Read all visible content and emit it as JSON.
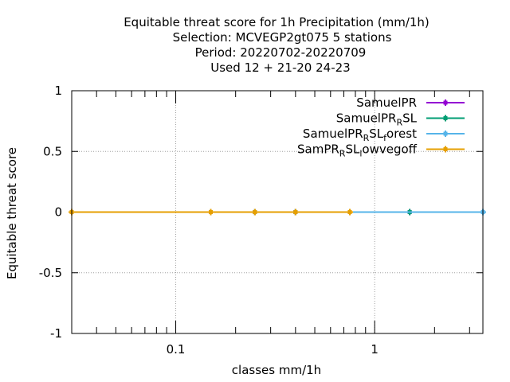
{
  "chart_data": {
    "type": "line",
    "title_lines": [
      "Equitable threat score  for 1h Precipitation (mm/1h)",
      "Selection: MCVEGP2gt075       5 stations",
      "Period: 20220702-20220709",
      "Used  12 + 21-20 24-23"
    ],
    "xlabel": "classes mm/1h",
    "ylabel": "Equitable threat score",
    "x_scale": "log",
    "xlim": [
      0.03,
      3.5
    ],
    "ylim": [
      -1,
      1
    ],
    "x_ticks": [
      0.1,
      1
    ],
    "x_tick_labels": [
      "0.1",
      "1"
    ],
    "y_ticks": [
      -1,
      -0.5,
      0,
      0.5,
      1
    ],
    "y_tick_labels": [
      "-1",
      "-0.5",
      "0",
      "0.5",
      "1"
    ],
    "grid": true,
    "legend_position": "top-right",
    "series": [
      {
        "name_main": "SamuelPR",
        "name_sub": "",
        "name_tail": "",
        "color": "#9400d3",
        "x": [
          0.03,
          0.15,
          0.25,
          0.4,
          0.75,
          1.5,
          3.5
        ],
        "y": [
          0,
          0,
          0,
          0,
          0,
          0,
          0
        ]
      },
      {
        "name_main": "SamuelPR",
        "name_sub": "R",
        "name_tail": "SL",
        "color": "#009e73",
        "x": [
          0.03,
          0.15,
          0.25,
          0.4,
          0.75,
          1.5,
          3.5
        ],
        "y": [
          0,
          0,
          0,
          0,
          0,
          0,
          0
        ]
      },
      {
        "name_main": "SamuelPR",
        "name_sub": "R",
        "name_tail": "SL",
        "name_sub2": "f",
        "name_tail2": "orest",
        "color": "#56b4e9",
        "x": [
          0.03,
          0.15,
          0.25,
          0.4,
          0.75,
          3.5
        ],
        "y": [
          0,
          0,
          0,
          0,
          0,
          0
        ]
      },
      {
        "name_main": "SamPR",
        "name_sub": "R",
        "name_tail": "SL",
        "name_sub2": "l",
        "name_tail2": "owvegoff",
        "color": "#e69f00",
        "x": [
          0.03,
          0.15,
          0.25,
          0.4,
          0.75
        ],
        "y": [
          0,
          0,
          0,
          0,
          0
        ]
      }
    ]
  }
}
